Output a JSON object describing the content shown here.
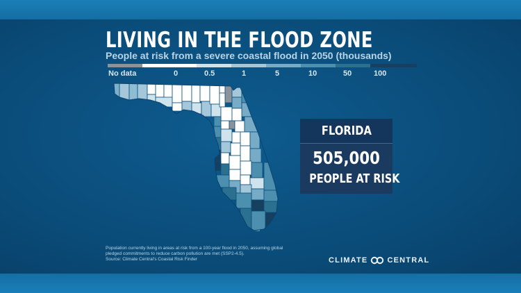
{
  "title": "LIVING IN THE FLOOD ZONE",
  "subtitle": "People at risk from a severe coastal flood in 2050 (thousands)",
  "legend": {
    "items": [
      {
        "label": "No data",
        "color": "#8c939b"
      },
      {
        "label": "0",
        "color": "#ffffff"
      },
      {
        "label": "0.5",
        "color": "#cfe3ec"
      },
      {
        "label": "1",
        "color": "#a4c8da"
      },
      {
        "label": "5",
        "color": "#77abc6"
      },
      {
        "label": "10",
        "color": "#4d8fae"
      },
      {
        "label": "50",
        "color": "#2c7090"
      },
      {
        "label": "100",
        "color": "#173f5f"
      }
    ]
  },
  "callout": {
    "state": "FLORIDA",
    "value": "505,000",
    "caption": "PEOPLE AT RISK"
  },
  "footnote": {
    "line1": "Population currently living in areas at risk from a 100-year flood in 2050, assuming global",
    "line2": "pledged commitments to reduce carbon pollution are met (SSP2-4.5).",
    "line3": "Source: Climate Central's Coastal Risk Finder"
  },
  "logo": {
    "left": "CLIMATE",
    "right": "CENTRAL",
    "icon": "infinity-logo-icon"
  },
  "colors": {
    "background": "#0b4f7e",
    "band": "#1a7fb8",
    "callout": "#15365c"
  }
}
